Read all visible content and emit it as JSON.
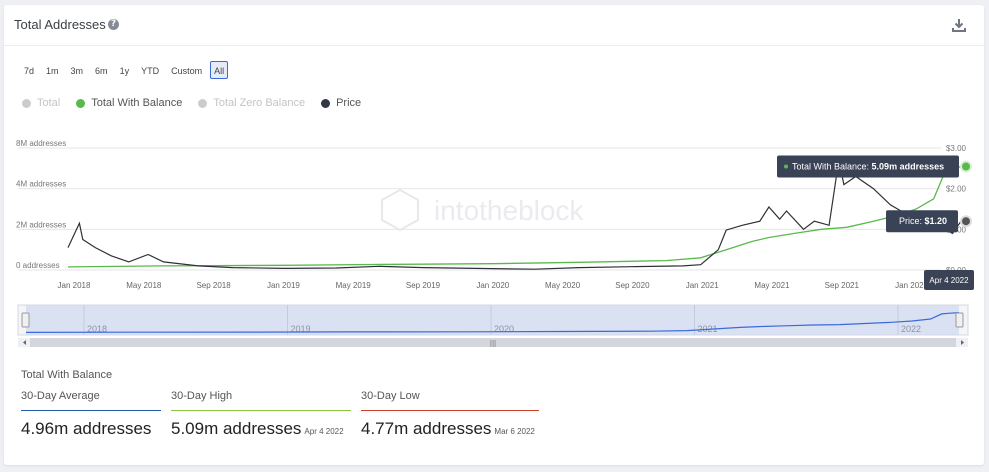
{
  "header": {
    "title": "Total Addresses",
    "help_glyph": "?"
  },
  "icons": {
    "help": "help-icon",
    "download": "download-icon",
    "drag_handle": "drag-handle-icon"
  },
  "range_buttons": [
    "7d",
    "1m",
    "3m",
    "6m",
    "1y",
    "YTD",
    "Custom",
    "All"
  ],
  "active_range": "All",
  "legend": [
    {
      "label": "Total",
      "color": "#cccccc",
      "text_color": "#c4c4c4"
    },
    {
      "label": "Total With Balance",
      "color": "#5ab94c",
      "text_color": "#555555"
    },
    {
      "label": "Total Zero Balance",
      "color": "#cccccc",
      "text_color": "#c4c4c4"
    },
    {
      "label": "Price",
      "color": "#333842",
      "text_color": "#555555"
    }
  ],
  "watermark": "intotheblock",
  "colors": {
    "balance_line": "#5ab94c",
    "price_line": "#2e3036",
    "tooltip_bg": "#3a4256",
    "navigator_fill": "#cfd8ef",
    "navigator_line": "#3b6bd9",
    "average_line": "#1f5aa8",
    "high_line": "#8ac53f",
    "low_line": "#c8402c"
  },
  "chart_data": {
    "type": "line",
    "title": "Total Addresses",
    "x_tick_labels": [
      "Jan 2018",
      "May 2018",
      "Sep 2018",
      "Jan 2019",
      "May 2019",
      "Sep 2019",
      "Jan 2020",
      "May 2020",
      "Sep 2020",
      "Jan 2021",
      "May 2021",
      "Sep 2021",
      "Jan 2022"
    ],
    "y_left_ticks": [
      "0 addresses",
      "2M addresses",
      "4M addresses",
      "8M addresses"
    ],
    "y_right_ticks": [
      "$0.00",
      "$1.00",
      "$2.00",
      "$3.00"
    ],
    "x_range": [
      "2017-12-15",
      "2022-04-04"
    ],
    "y_left_range": [
      0,
      6000000
    ],
    "y_right_range": [
      0,
      3
    ],
    "grid": true,
    "series": [
      {
        "name": "Total With Balance",
        "axis": "left",
        "x": [
          "2017-12-15",
          "2018-06-01",
          "2019-01-01",
          "2019-06-01",
          "2020-01-01",
          "2020-06-01",
          "2020-11-01",
          "2021-01-01",
          "2021-02-15",
          "2021-04-01",
          "2021-05-01",
          "2021-06-15",
          "2021-08-01",
          "2021-09-15",
          "2021-11-01",
          "2021-12-15",
          "2022-01-15",
          "2022-02-15",
          "2022-03-06",
          "2022-03-20",
          "2022-04-04"
        ],
        "y": [
          150000,
          200000,
          230000,
          270000,
          310000,
          380000,
          460000,
          600000,
          1000000,
          1400000,
          1600000,
          1800000,
          2000000,
          2100000,
          2400000,
          2700000,
          3000000,
          3500000,
          4770000,
          4950000,
          5090000
        ]
      },
      {
        "name": "Price",
        "axis": "right",
        "x": [
          "2017-12-15",
          "2018-01-04",
          "2018-01-10",
          "2018-02-01",
          "2018-03-01",
          "2018-04-01",
          "2018-05-05",
          "2018-06-01",
          "2018-08-01",
          "2018-10-01",
          "2019-01-01",
          "2019-04-01",
          "2019-06-15",
          "2019-09-01",
          "2019-12-01",
          "2020-03-15",
          "2020-06-01",
          "2020-09-01",
          "2020-12-01",
          "2021-01-01",
          "2021-02-01",
          "2021-02-15",
          "2021-03-15",
          "2021-04-15",
          "2021-05-01",
          "2021-05-20",
          "2021-06-01",
          "2021-07-01",
          "2021-07-20",
          "2021-08-15",
          "2021-09-01",
          "2021-09-10",
          "2021-10-01",
          "2021-11-01",
          "2021-12-01",
          "2022-01-01",
          "2022-01-20",
          "2022-02-10",
          "2022-03-01",
          "2022-03-20",
          "2022-04-04"
        ],
        "y": [
          0.55,
          1.15,
          0.75,
          0.55,
          0.35,
          0.2,
          0.38,
          0.2,
          0.1,
          0.06,
          0.04,
          0.05,
          0.09,
          0.06,
          0.04,
          0.02,
          0.06,
          0.08,
          0.1,
          0.13,
          0.5,
          0.98,
          1.1,
          1.2,
          1.55,
          1.25,
          1.45,
          1.0,
          1.2,
          1.1,
          2.7,
          2.1,
          2.3,
          2.0,
          1.6,
          1.35,
          1.1,
          1.3,
          1.05,
          0.9,
          1.2
        ]
      }
    ],
    "tooltip": {
      "balance_prefix": "Total With Balance:",
      "balance_value": "5.09m addresses",
      "price_prefix": "Price:",
      "price_value": "$1.20",
      "date": "Apr 4 2022"
    },
    "navigator_years": [
      "2018",
      "2019",
      "2020",
      "2021",
      "2022"
    ]
  },
  "stats": {
    "title": "Total With Balance",
    "items": [
      {
        "label": "30-Day Average",
        "value": "4.96m addresses",
        "date": ""
      },
      {
        "label": "30-Day High",
        "value": "5.09m addresses",
        "date": "Apr 4 2022"
      },
      {
        "label": "30-Day Low",
        "value": "4.77m addresses",
        "date": "Mar 6 2022"
      }
    ]
  }
}
